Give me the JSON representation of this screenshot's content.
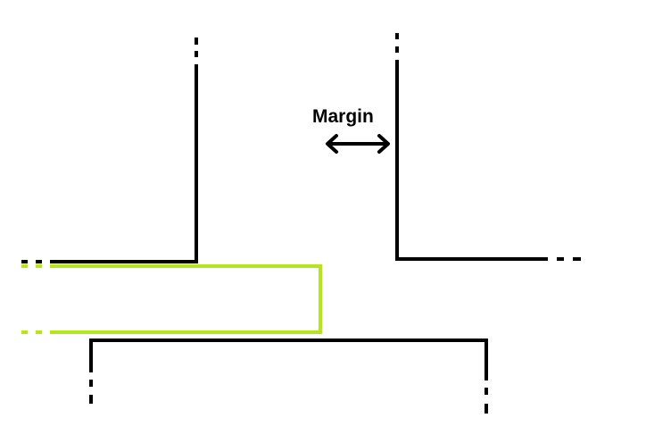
{
  "diagram": {
    "margin_label": "Margin"
  },
  "colors": {
    "outline": "#000000",
    "highlight": "#b5e61d",
    "background": "#ffffff"
  },
  "icons": {
    "margin_arrow": "double-headed-horizontal-arrow-icon"
  }
}
